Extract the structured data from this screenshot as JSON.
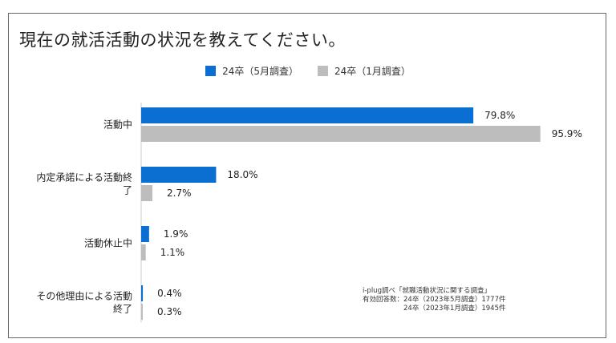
{
  "chart_data": {
    "type": "bar",
    "orientation": "horizontal",
    "title": "現在の就活活動の状況を教えてください。",
    "categories": [
      "活動中",
      "内定承諾による活動終了",
      "活動休止中",
      "その他理由による活動終了"
    ],
    "category_lines": [
      [
        "活動中"
      ],
      [
        "内定承諾による活動終",
        "了"
      ],
      [
        "活動休止中"
      ],
      [
        "その他理由による活動",
        "終了"
      ]
    ],
    "series": [
      {
        "name": "24卒（5月調査）",
        "color": "#0a6fd0",
        "values": [
          79.8,
          18.0,
          1.9,
          0.4
        ]
      },
      {
        "name": "24卒（1月調査）",
        "color": "#bdbdbd",
        "values": [
          95.9,
          2.7,
          1.1,
          0.3
        ]
      }
    ],
    "value_format": "%",
    "xlim": [
      0,
      100
    ],
    "grid": false,
    "legend_position": "top-center",
    "source_note": [
      "i-plug調べ「就職活動状況に関する調査」",
      "有効回答数：24卒（2023年5月調査）1777件",
      "　　　　　　24卒（2023年1月調査）1945件"
    ]
  }
}
